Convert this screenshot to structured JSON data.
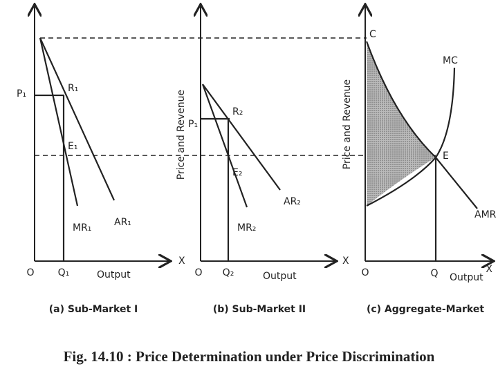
{
  "panels": [
    {
      "title": "(a) Sub-Market I",
      "price": "P₁",
      "point_r": "R₁",
      "point_e": "E₁",
      "mr": "MR₁",
      "ar": "AR₁",
      "origin": "O",
      "quantity": "Q₁",
      "x_label": "Output",
      "x_axis": "X"
    },
    {
      "title": "(b) Sub-Market II",
      "y_label": "Price and Revenue",
      "price": "P₁",
      "point_r": "R₂",
      "point_e": "E₂",
      "mr": "MR₂",
      "ar": "AR₂",
      "origin": "O",
      "quantity": "Q₂",
      "x_label": "Output",
      "x_axis": "X"
    },
    {
      "title": "(c) Aggregate-Market",
      "y_label": "Price and Revenue",
      "point_c": "C",
      "mc": "MC",
      "point_e": "E",
      "amr": "AMR",
      "origin": "O",
      "quantity": "Q",
      "x_label": "Output",
      "x_axis": "X"
    }
  ],
  "caption": "Fig. 14.10 : Price Determination under Price Discrimination"
}
